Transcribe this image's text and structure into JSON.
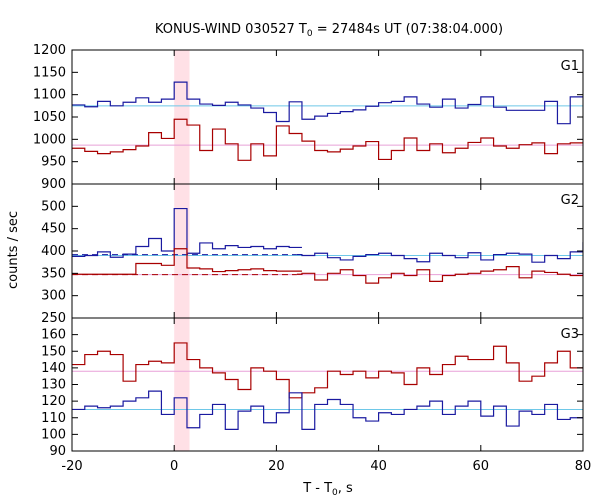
{
  "chart_data": {
    "type": "line",
    "title": {
      "main": "KONUS-WIND 030527 T",
      "sub": "0",
      "rest": " = 27484s UT (07:38:04.000)"
    },
    "xlabel": {
      "main": "T - T",
      "sub": "0",
      "rest": ", s"
    },
    "ylabel": "counts / sec",
    "xlim": [
      -20,
      80
    ],
    "xticks": [
      "-20",
      "0",
      "20",
      "40",
      "60",
      "80"
    ],
    "highlight_band": [
      0,
      3
    ],
    "colors": {
      "red": "#a80000",
      "blue": "#1a1aa0",
      "cyan": "#6ec8e8",
      "pink": "#e8a0d8",
      "band": "#ffe0e6"
    },
    "panels": [
      {
        "name": "G1",
        "ylim": [
          900,
          1200
        ],
        "yticks": [
          "1200",
          "1150",
          "1100",
          "1050",
          "1000",
          "950",
          "900"
        ],
        "series": [
          {
            "color": "blue",
            "step_x": [
              -20,
              -17.5,
              -15,
              -12.5,
              -10,
              -7.5,
              -5,
              -2.5,
              0,
              2.5,
              5,
              7.5,
              10,
              12.5,
              15,
              17.5,
              20,
              22.5,
              25,
              27.5,
              30,
              32.5,
              35,
              37.5,
              40,
              42.5,
              45,
              47.5,
              50,
              52.5,
              55,
              57.5,
              60,
              62.5,
              65,
              67.5,
              70,
              72.5,
              75,
              77.5,
              80
            ],
            "values": [
              1077,
              1073,
              1085,
              1075,
              1083,
              1093,
              1083,
              1090,
              1128,
              1090,
              1079,
              1076,
              1083,
              1077,
              1070,
              1060,
              1040,
              1084,
              1045,
              1052,
              1058,
              1062,
              1066,
              1074,
              1082,
              1085,
              1095,
              1079,
              1072,
              1090,
              1070,
              1078,
              1095,
              1072,
              1065,
              1065,
              1065,
              1085,
              1035,
              1095
            ]
          },
          {
            "color": "red",
            "step_x": [
              -20,
              -17.5,
              -15,
              -12.5,
              -10,
              -7.5,
              -5,
              -2.5,
              0,
              2.5,
              5,
              7.5,
              10,
              12.5,
              15,
              17.5,
              20,
              22.5,
              25,
              27.5,
              30,
              32.5,
              35,
              37.5,
              40,
              42.5,
              45,
              47.5,
              50,
              52.5,
              55,
              57.5,
              60,
              62.5,
              65,
              67.5,
              70,
              72.5,
              75,
              77.5,
              80
            ],
            "values": [
              980,
              973,
              968,
              972,
              977,
              985,
              1015,
              1002,
              1045,
              1032,
              975,
              1023,
              990,
              953,
              990,
              963,
              1030,
              1013,
              996,
              975,
              972,
              978,
              985,
              995,
              955,
              975,
              1003,
              975,
              990,
              970,
              980,
              993,
              1003,
              985,
              980,
              988,
              992,
              968,
              990,
              992
            ]
          }
        ],
        "fits": [
          {
            "color": "cyan",
            "y": 1075,
            "dashed": false,
            "from": -20,
            "to": 80
          },
          {
            "color": "pink",
            "y": 987,
            "dashed": false,
            "from": -20,
            "to": 80
          }
        ]
      },
      {
        "name": "G2",
        "ylim": [
          250,
          550
        ],
        "yticks": [
          "500",
          "450",
          "400",
          "350",
          "300",
          "250"
        ],
        "series": [
          {
            "color": "blue",
            "step_x": [
              -20,
              -17.5,
              -15,
              -12.5,
              -10,
              -7.5,
              -5,
              -2.5,
              0,
              2.5,
              5,
              7.5,
              10,
              12.5,
              15,
              17.5,
              20,
              22.5,
              25,
              27.5,
              30,
              32.5,
              35,
              37.5,
              40,
              42.5,
              45,
              47.5,
              50,
              52.5,
              55,
              57.5,
              60,
              62.5,
              65,
              67.5,
              70,
              72.5,
              75,
              77.5,
              80
            ],
            "values": [
              388,
              390,
              398,
              386,
              393,
              410,
              428,
              400,
              495,
              395,
              418,
              405,
              412,
              408,
              410,
              405,
              410,
              408
            ]
          },
          {
            "color": "blue",
            "step_x": [
              24,
              25,
              27.5,
              30,
              32.5,
              35,
              37.5,
              40,
              42.5,
              45,
              47.5,
              50,
              52.5,
              55,
              57.5,
              60,
              62.5,
              65,
              67.5,
              70,
              72.5,
              75,
              77.5,
              80
            ],
            "values": [
              392,
              390,
              395,
              385,
              380,
              388,
              392,
              395,
              390,
              383,
              376,
              395,
              390,
              385,
              396,
              380,
              392,
              395,
              393,
              375,
              390,
              383,
              398,
              420
            ]
          },
          {
            "color": "red",
            "step_x": [
              -20,
              -17.5,
              -15,
              -12.5,
              -10,
              -7.5,
              -5,
              -2.5,
              0,
              2.5,
              5,
              7.5,
              10,
              12.5,
              15,
              17.5,
              20,
              22.5,
              25,
              27.5,
              30,
              32.5,
              35,
              37.5,
              40,
              42.5,
              45,
              47.5,
              50,
              52.5,
              55,
              57.5,
              60,
              62.5,
              65,
              67.5,
              70,
              72.5,
              75,
              77.5,
              80
            ],
            "values": [
              348,
              348,
              348,
              348,
              348,
              372,
              372,
              368,
              405,
              362,
              360,
              354,
              356,
              358,
              360,
              356,
              355,
              355
            ]
          },
          {
            "color": "red",
            "step_x": [
              24,
              25,
              27.5,
              30,
              32.5,
              35,
              37.5,
              40,
              42.5,
              45,
              47.5,
              50,
              52.5,
              55,
              57.5,
              60,
              62.5,
              65,
              67.5,
              70,
              72.5,
              75,
              77.5,
              80
            ],
            "values": [
              348,
              350,
              335,
              350,
              358,
              345,
              328,
              340,
              350,
              345,
              358,
              332,
              345,
              348,
              350,
              355,
              358,
              365,
              340,
              355,
              352,
              348,
              345,
              345
            ]
          }
        ],
        "fits": [
          {
            "color": "cyan",
            "y": 390,
            "dashed": false,
            "from": -20,
            "to": 80
          },
          {
            "color": "pink",
            "y": 347,
            "dashed": false,
            "from": -20,
            "to": 80
          },
          {
            "color": "blue",
            "y": 392,
            "dashed": true,
            "from": -20,
            "to": 24
          },
          {
            "color": "red",
            "y": 347,
            "dashed": true,
            "from": -20,
            "to": 24
          }
        ]
      },
      {
        "name": "G3",
        "ylim": [
          90,
          170
        ],
        "yticks": [
          "160",
          "150",
          "140",
          "130",
          "120",
          "110",
          "100",
          "90"
        ],
        "series": [
          {
            "color": "red",
            "step_x": [
              -20,
              -17.5,
              -15,
              -12.5,
              -10,
              -7.5,
              -5,
              -2.5,
              0,
              2.5,
              5,
              7.5,
              10,
              12.5,
              15,
              17.5,
              20,
              22.5,
              25,
              27.5,
              30,
              32.5,
              35,
              37.5,
              40,
              42.5,
              45,
              47.5,
              50,
              52.5,
              55,
              57.5,
              60,
              62.5,
              65,
              67.5,
              70,
              72.5,
              75,
              77.5,
              80
            ],
            "values": [
              142,
              148,
              150,
              148,
              132,
              142,
              144,
              143,
              155,
              145,
              140,
              137,
              133,
              127,
              140,
              138,
              133,
              122,
              125,
              128,
              138,
              136,
              138,
              134,
              138,
              137,
              130,
              140,
              136,
              142,
              147,
              145,
              145,
              153,
              143,
              132,
              135,
              143,
              150,
              140
            ]
          },
          {
            "color": "blue",
            "step_x": [
              -20,
              -17.5,
              -15,
              -12.5,
              -10,
              -7.5,
              -5,
              -2.5,
              0,
              2.5,
              5,
              7.5,
              10,
              12.5,
              15,
              17.5,
              20,
              22.5,
              25,
              27.5,
              30,
              32.5,
              35,
              37.5,
              40,
              42.5,
              45,
              47.5,
              50,
              52.5,
              55,
              57.5,
              60,
              62.5,
              65,
              67.5,
              70,
              72.5,
              75,
              77.5,
              80
            ],
            "values": [
              115,
              117,
              116,
              117,
              120,
              122,
              126,
              112,
              122,
              104,
              112,
              118,
              103,
              114,
              117,
              107,
              113,
              125,
              103,
              118,
              121,
              118,
              110,
              108,
              113,
              112,
              115,
              117,
              120,
              112,
              117,
              120,
              111,
              117,
              105,
              114,
              112,
              118,
              109,
              110
            ]
          }
        ],
        "fits": [
          {
            "color": "pink",
            "y": 138,
            "dashed": false,
            "from": -20,
            "to": 80
          },
          {
            "color": "cyan",
            "y": 115,
            "dashed": false,
            "from": -20,
            "to": 80
          }
        ]
      }
    ]
  }
}
